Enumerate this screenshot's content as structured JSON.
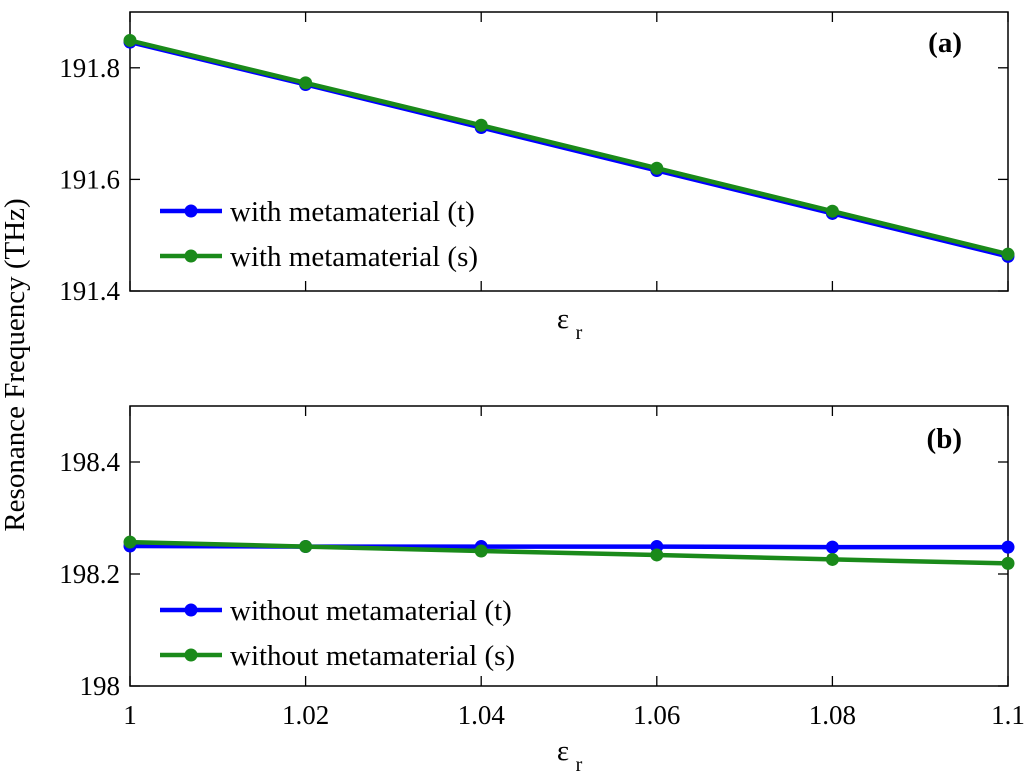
{
  "ylabel": "Resonance Frequency (THz)",
  "chart_data": [
    {
      "type": "line",
      "panel_label": "(a)",
      "xlabel_base": "ε",
      "xlabel_sub": "r",
      "x": [
        1,
        1.02,
        1.04,
        1.06,
        1.08,
        1.1
      ],
      "xlim": [
        1,
        1.1
      ],
      "ylim": [
        191.4,
        191.9
      ],
      "yticks": [
        191.4,
        191.6,
        191.8
      ],
      "ytick_labels": [
        "191.4",
        "191.6",
        "191.8"
      ],
      "xtick_labels": [],
      "legend_location": "lower-left",
      "series": [
        {
          "name": "with metamaterial (t)",
          "color": "#0000ff",
          "values": [
            191.846,
            191.77,
            191.693,
            191.616,
            191.539,
            191.462
          ]
        },
        {
          "name": "with metamaterial (s)",
          "color": "#1a8a1a",
          "values": [
            191.849,
            191.773,
            191.697,
            191.62,
            191.543,
            191.466
          ]
        }
      ]
    },
    {
      "type": "line",
      "panel_label": "(b)",
      "xlabel_base": "ε",
      "xlabel_sub": "r",
      "x": [
        1,
        1.02,
        1.04,
        1.06,
        1.08,
        1.1
      ],
      "xlim": [
        1,
        1.1
      ],
      "ylim": [
        198.0,
        198.5
      ],
      "yticks": [
        198.0,
        198.2,
        198.4
      ],
      "ytick_labels": [
        "198",
        "198.2",
        "198.4"
      ],
      "xtick_labels": [
        "1",
        "1.02",
        "1.04",
        "1.06",
        "1.08",
        "1.1"
      ],
      "legend_location": "lower-left",
      "series": [
        {
          "name": "without metamaterial (t)",
          "color": "#0000ff",
          "values": [
            198.25,
            198.249,
            198.249,
            198.249,
            198.248,
            198.248
          ]
        },
        {
          "name": "without metamaterial (s)",
          "color": "#1a8a1a",
          "values": [
            198.257,
            198.249,
            198.241,
            198.234,
            198.226,
            198.219
          ]
        }
      ]
    }
  ]
}
